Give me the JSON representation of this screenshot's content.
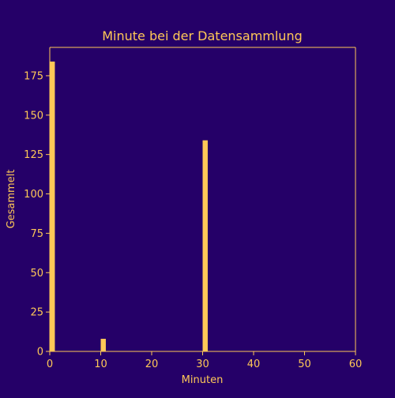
{
  "colors": {
    "background": "#250068",
    "foreground": "#ffc857",
    "bar": "#ffc857"
  },
  "chart_data": {
    "type": "bar",
    "title": "Minute bei der Datensammlung",
    "xlabel": "Minuten",
    "ylabel": "Gesammelt",
    "xlim": [
      0,
      60
    ],
    "ylim": [
      0,
      193
    ],
    "x_ticks": [
      0,
      10,
      20,
      30,
      40,
      50,
      60
    ],
    "y_ticks": [
      0,
      25,
      50,
      75,
      100,
      125,
      150,
      175
    ],
    "bin_width": 1,
    "grid": false,
    "bars": [
      {
        "x": 0,
        "value": 184
      },
      {
        "x": 10,
        "value": 8
      },
      {
        "x": 30,
        "value": 134
      }
    ]
  }
}
